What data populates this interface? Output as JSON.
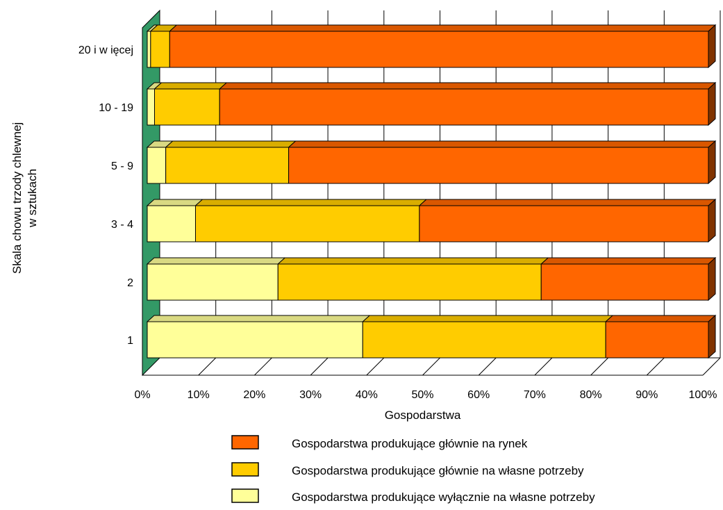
{
  "chart_data": {
    "type": "bar",
    "orientation": "horizontal",
    "stacked": "percent",
    "style": "3d",
    "ylabel": [
      "Skala chowu trzody chlewnej",
      "w sztukach"
    ],
    "xlabel": "Gospodarstwa",
    "categories": [
      "1",
      "2",
      "3 - 4",
      "5 - 9",
      "10 - 19",
      "20 i w ięcej"
    ],
    "xticks": [
      "0%",
      "10%",
      "20%",
      "30%",
      "40%",
      "50%",
      "60%",
      "70%",
      "80%",
      "90%",
      "100%"
    ],
    "xlim": [
      0,
      100
    ],
    "series": [
      {
        "name": "Gospodarstwa produkujące wyłącznie na własne potrzeby",
        "color": "#ffff99",
        "values": [
          38.4,
          23.3,
          8.6,
          3.3,
          1.3,
          0.6
        ]
      },
      {
        "name": "Gospodarstwa produkujące głównie na własne potrzeby",
        "color": "#ffcc00",
        "values": [
          43.3,
          46.9,
          39.9,
          21.9,
          11.6,
          3.4
        ]
      },
      {
        "name": "Gospodarstwa produkujące głównie na rynek",
        "color": "#ff6600",
        "values": [
          18.3,
          29.8,
          51.5,
          74.8,
          87.1,
          96.0
        ]
      }
    ],
    "legend": {
      "position": "bottom",
      "order": [
        "Gospodarstwa produkujące głównie na rynek",
        "Gospodarstwa produkujące głównie na własne potrzeby",
        "Gospodarstwa produkujące wyłącznie na własne potrzeby"
      ]
    },
    "grid": true
  },
  "colors": {
    "wall": "#339966",
    "gridline": "#000000",
    "frame": "#000000"
  }
}
